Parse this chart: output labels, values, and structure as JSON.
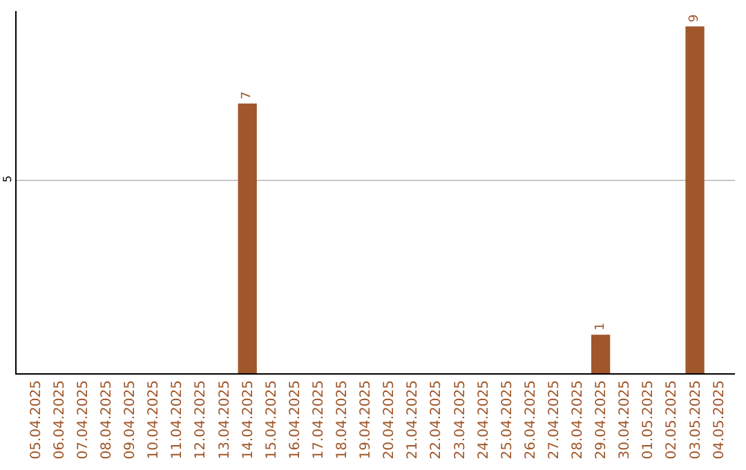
{
  "chart_data": {
    "type": "bar",
    "categories": [
      "05.04.2025",
      "06.04.2025",
      "07.04.2025",
      "08.04.2025",
      "09.04.2025",
      "10.04.2025",
      "11.04.2025",
      "12.04.2025",
      "13.04.2025",
      "14.04.2025",
      "15.04.2025",
      "16.04.2025",
      "17.04.2025",
      "18.04.2025",
      "19.04.2025",
      "20.04.2025",
      "21.04.2025",
      "22.04.2025",
      "23.04.2025",
      "24.04.2025",
      "25.04.2025",
      "26.04.2025",
      "27.04.2025",
      "28.04.2025",
      "29.04.2025",
      "30.04.2025",
      "01.05.2025",
      "02.05.2025",
      "03.05.2025",
      "04.05.2025"
    ],
    "values": [
      0,
      0,
      0,
      0,
      0,
      0,
      0,
      0,
      0,
      7,
      0,
      0,
      0,
      0,
      0,
      0,
      0,
      0,
      0,
      0,
      0,
      0,
      0,
      0,
      1,
      0,
      0,
      0,
      9,
      0
    ],
    "value_labels": [
      null,
      null,
      null,
      null,
      null,
      null,
      null,
      null,
      null,
      "7",
      null,
      null,
      null,
      null,
      null,
      null,
      null,
      null,
      null,
      null,
      null,
      null,
      null,
      null,
      "1",
      null,
      null,
      null,
      "9",
      null
    ],
    "color": "#a0572a",
    "ylim": [
      0,
      9.4
    ],
    "yticks": [
      5
    ],
    "grid": "y",
    "legend": false
  }
}
